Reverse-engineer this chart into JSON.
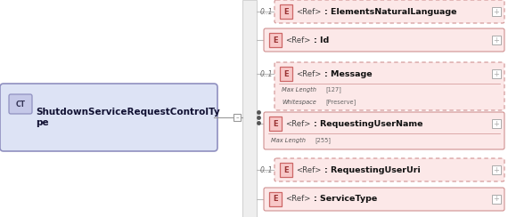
{
  "ct_label": "CT",
  "ct_name": "ShutdownServiceRequestControlTy\npe",
  "ct_fill": "#dde3f5",
  "ct_stroke": "#9090c0",
  "ct_badge_fill": "#c5c8e8",
  "ct_badge_stroke": "#9090c0",
  "spine_color": "#c0c0c0",
  "bg_color": "#ffffff",
  "elem_fill_solid": "#fce8e8",
  "elem_fill_dashed": "#fce8e8",
  "elem_stroke_solid": "#d09090",
  "elem_stroke_dashed": "#d09090",
  "e_fill": "#f8c8c8",
  "e_stroke": "#cc6666",
  "plus_color": "#aaaaaa",
  "prefix_color": "#666666",
  "sub_label_color": "#555555",
  "sub_value_color": "#666666",
  "line_color": "#bbbbbb",
  "seq_dot_color": "#555555",
  "elements": [
    {
      "label": ": ElementsNaturalLanguage",
      "dashed": true,
      "prefix": "0..1",
      "sub_lines": [],
      "indent": true
    },
    {
      "label": ": Id",
      "dashed": false,
      "prefix": "",
      "sub_lines": [],
      "indent": false
    },
    {
      "label": ": Message",
      "dashed": true,
      "prefix": "0..1",
      "sub_lines": [
        [
          "Max Length",
          "[127]"
        ],
        [
          "Whitespace",
          "[Preserve]"
        ]
      ],
      "indent": true
    },
    {
      "label": ": RequestingUserName",
      "dashed": false,
      "prefix": "",
      "sub_lines": [
        [
          "Max Length",
          "[255]"
        ]
      ],
      "indent": false
    },
    {
      "label": ": RequestingUserUri",
      "dashed": true,
      "prefix": "0..1",
      "sub_lines": [],
      "indent": true
    },
    {
      "label": ": ServiceType",
      "dashed": false,
      "prefix": "",
      "sub_lines": [],
      "indent": false
    }
  ]
}
